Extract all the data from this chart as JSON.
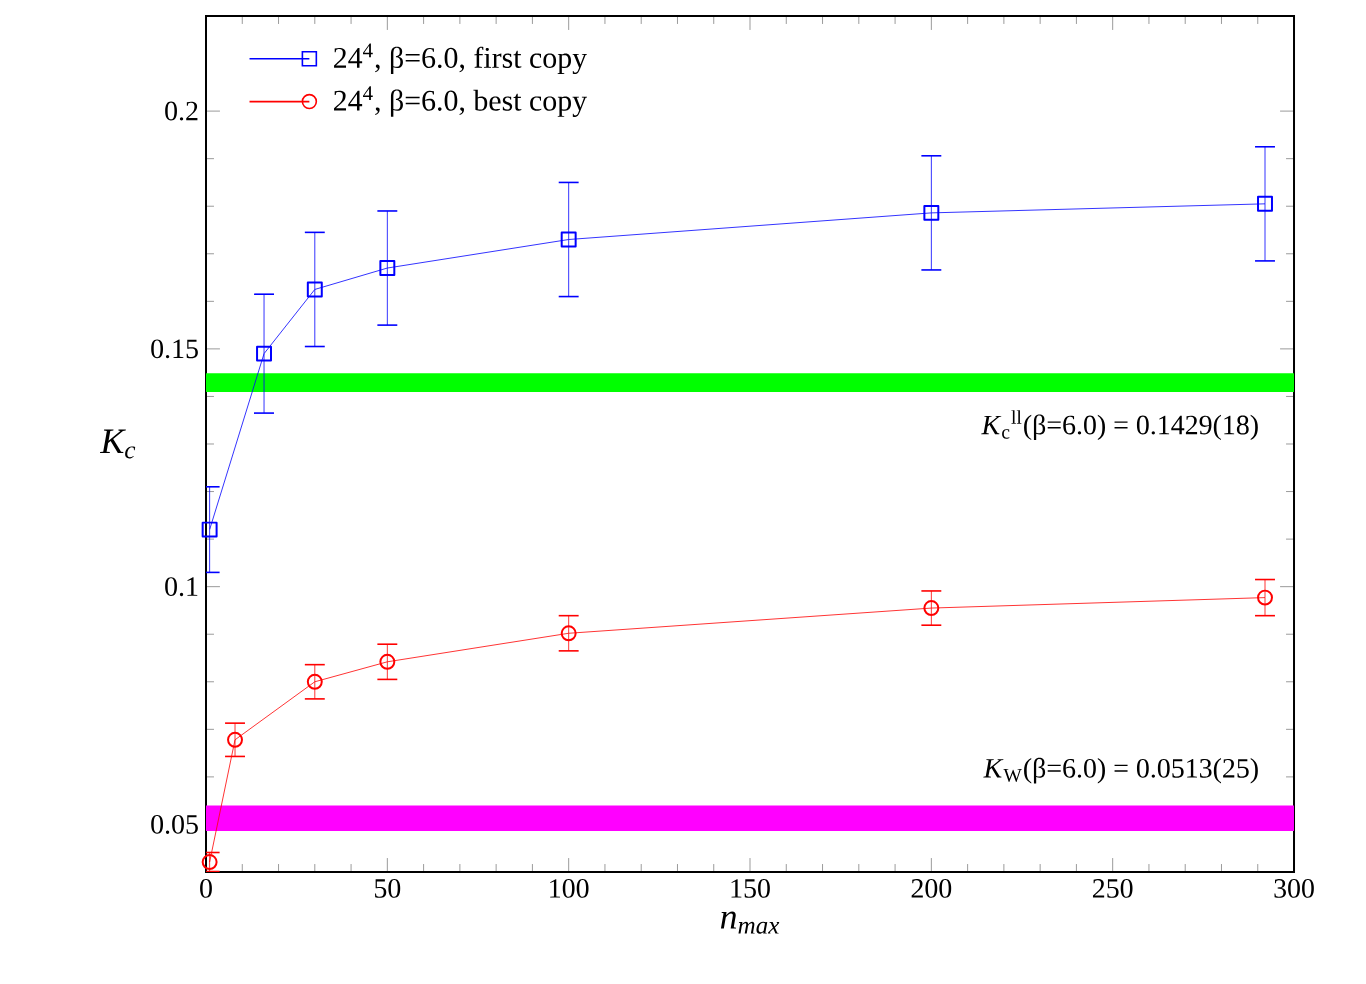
{
  "chart_data": {
    "type": "line",
    "xlabel": "n$_{max}$",
    "ylabel": "K$_{c}$",
    "xlim": [
      0,
      300
    ],
    "ylim": [
      0.04,
      0.22
    ],
    "xticks": [
      0,
      50,
      100,
      150,
      200,
      250,
      300
    ],
    "yticks": [
      0.05,
      0.1,
      0.15,
      0.2
    ],
    "grid": false,
    "legend": "top left",
    "series": [
      {
        "name": "24$^{4}$, β=6.0, first copy",
        "color": "#0000ff",
        "marker": "square",
        "x": [
          1,
          16,
          30,
          50,
          100,
          200,
          292
        ],
        "values": [
          0.112,
          0.149,
          0.1625,
          0.167,
          0.173,
          0.1786,
          0.1805
        ],
        "errors": [
          0.009,
          0.0125,
          0.012,
          0.012,
          0.012,
          0.012,
          0.012
        ]
      },
      {
        "name": "24$^{4}$, β=6.0, best copy",
        "color": "#ff0000",
        "marker": "circle",
        "x": [
          1,
          8,
          30,
          50,
          100,
          200,
          292
        ],
        "values": [
          0.0421,
          0.0678,
          0.08,
          0.0842,
          0.0902,
          0.0955,
          0.0977
        ],
        "errors": [
          0.002,
          0.0035,
          0.0036,
          0.0037,
          0.0037,
          0.0036,
          0.0038
        ]
      }
    ],
    "bands": [
      {
        "axis": "y",
        "from": 0.1411,
        "to": 0.1447,
        "color": "#00ff00",
        "label": "*K*$_{c}$$^{ll}$(β=6.0) = 0.1429(18)"
      },
      {
        "axis": "y",
        "from": 0.0488,
        "to": 0.0538,
        "color": "#ff00ff",
        "label": "*K*$_{W}$(β=6.0) = 0.0513(25)"
      }
    ]
  }
}
